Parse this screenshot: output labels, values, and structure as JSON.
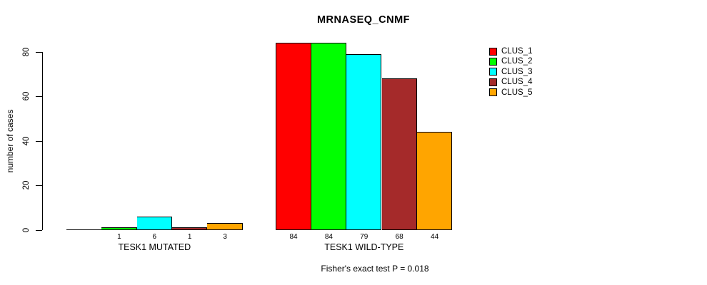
{
  "page": {
    "background_color": "#FFFFFF",
    "text_color": "#000000"
  },
  "chart_data": {
    "type": "bar",
    "title": "MRNASEQ_CNMF",
    "xlabel": "",
    "ylabel": "number of cases",
    "ylim": [
      0,
      80
    ],
    "yticks": [
      0,
      20,
      40,
      60,
      80
    ],
    "grid": false,
    "legend_position": "right",
    "annotation": "Fisher's exact test P = 0.018",
    "categories": [
      "TESK1 MUTATED",
      "TESK1 WILD-TYPE"
    ],
    "series": [
      {
        "name": "CLUS_1",
        "color": "#FF0000",
        "values": [
          0,
          84
        ]
      },
      {
        "name": "CLUS_2",
        "color": "#00FF00",
        "values": [
          1,
          84
        ]
      },
      {
        "name": "CLUS_3",
        "color": "#00FFFF",
        "values": [
          6,
          79
        ]
      },
      {
        "name": "CLUS_4",
        "color": "#A52A2A",
        "values": [
          1,
          68
        ]
      },
      {
        "name": "CLUS_5",
        "color": "#FFA500",
        "values": [
          3,
          44
        ]
      }
    ],
    "groups": [
      {
        "label": "TESK1 MUTATED",
        "values": [
          0,
          1,
          6,
          1,
          3
        ],
        "bar_labels": [
          "",
          "1",
          "6",
          "1",
          "3"
        ]
      },
      {
        "label": "TESK1 WILD-TYPE",
        "values": [
          84,
          84,
          79,
          68,
          44
        ],
        "bar_labels": [
          "84",
          "84",
          "79",
          "68",
          "44"
        ]
      }
    ],
    "legend": [
      {
        "label": "CLUS_1",
        "color": "#FF0000"
      },
      {
        "label": "CLUS_2",
        "color": "#00FF00"
      },
      {
        "label": "CLUS_3",
        "color": "#00FFFF"
      },
      {
        "label": "CLUS_4",
        "color": "#A52A2A"
      },
      {
        "label": "CLUS_5",
        "color": "#FFA500"
      }
    ]
  }
}
